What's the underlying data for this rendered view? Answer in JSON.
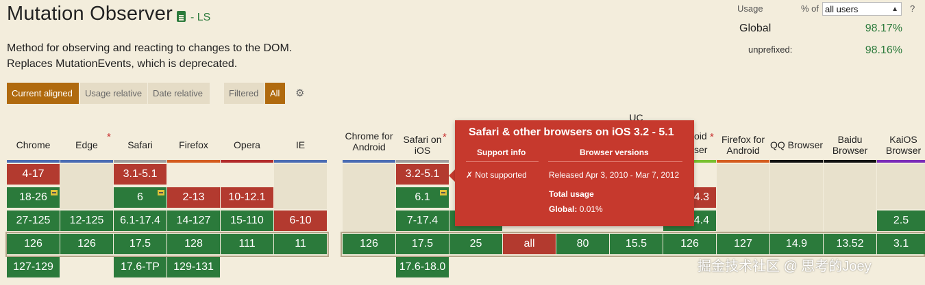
{
  "title": "Mutation Observer",
  "spec_status": "- LS",
  "description": [
    "Method for observing and reacting to changes to the DOM.",
    "Replaces MutationEvents, which is deprecated."
  ],
  "view_buttons": {
    "current_aligned": "Current aligned",
    "usage_relative": "Usage relative",
    "date_relative": "Date relative",
    "filtered": "Filtered",
    "all": "All"
  },
  "usage": {
    "label": "Usage",
    "percent_of": "% of",
    "scope_value": "all users",
    "help": "?",
    "global_label": "Global",
    "global_value": "98.17%",
    "unprefixed_label": "unprefixed:",
    "unprefixed_value": "98.16%"
  },
  "browsers": {
    "chrome": "Chrome",
    "edge": "Edge",
    "safari": "Safari",
    "firefox": "Firefox",
    "opera": "Opera",
    "ie": "IE",
    "chrome_android": "Chrome for Android",
    "safari_ios": "Safari on iOS",
    "uc": "UC",
    "android_partial": "oid",
    "android_partial2": "ser",
    "firefox_android": "Firefox for Android",
    "qq": "QQ Browser",
    "baidu": "Baidu Browser",
    "kaios": "KaiOS Browser"
  },
  "header_colors": {
    "chrome": "#4a6cb3",
    "edge": "#4a6cb3",
    "safari": "#a0a0a0",
    "firefox": "#d45c1e",
    "opera": "#b22c2c",
    "ie": "#4a6cb3",
    "chrome_android": "#4a6cb3",
    "safari_ios": "#a0a0a0",
    "android": "#78c030",
    "firefox_android": "#d45c1e",
    "qq": "#111111",
    "baidu": "#111111",
    "kaios": "#7a2bb8"
  },
  "cells": {
    "chrome": [
      "4-17",
      "18-26",
      "27-125",
      "126",
      "127-129"
    ],
    "edge": [
      "12-125",
      "126"
    ],
    "safari": [
      "3.1-5.1",
      "6",
      "6.1-17.4",
      "17.5",
      "17.6-TP"
    ],
    "firefox": [
      "2-13",
      "14-127",
      "128",
      "129-131"
    ],
    "opera": [
      "10-12.1",
      "15-110",
      "111"
    ],
    "ie": [
      "6-10",
      "11"
    ],
    "chrome_android": [
      "126"
    ],
    "safari_ios": [
      "3.2-5.1",
      "6.1",
      "7-17.4",
      "17.5",
      "17.6-18.0"
    ],
    "col_opera_mini": [
      "25"
    ],
    "col_all": [
      "all"
    ],
    "col_80": [
      "80"
    ],
    "uc": [
      "15.5"
    ],
    "android": [
      "4.3",
      "4.4",
      "126"
    ],
    "firefox_android": [
      "127"
    ],
    "qq": [
      "14.9"
    ],
    "baidu": [
      "13.52"
    ],
    "kaios": [
      "2.5",
      "3.1"
    ]
  },
  "tooltip": {
    "title": "Safari & other browsers on iOS 3.2 - 5.1",
    "support_header": "Support info",
    "versions_header": "Browser versions",
    "support_value": "✗ Not supported",
    "released": "Released Apr 3, 2010 - Mar 7, 2012",
    "total_usage_label": "Total usage",
    "global_label": "Global:",
    "global_value": "0.01%"
  },
  "watermark": "掘金技术社区 @ 思考的Joey"
}
